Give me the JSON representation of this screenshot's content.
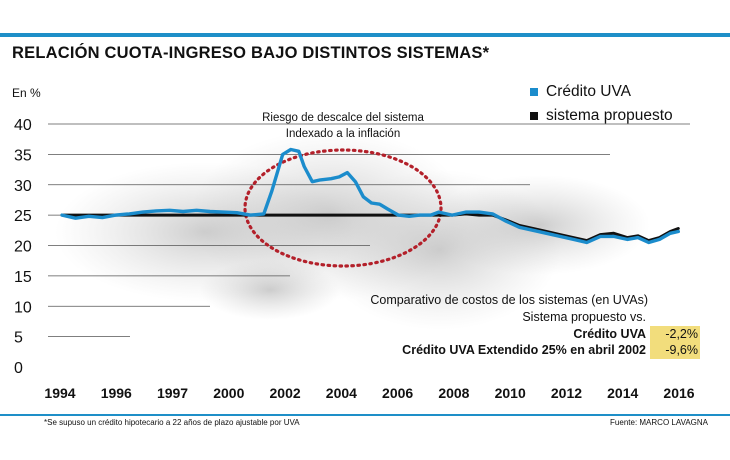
{
  "header": {
    "title": "RELACIÓN CUOTA-INGRESO BAJO DISTINTOS SISTEMAS*"
  },
  "chart_data": {
    "type": "line",
    "title": "RELACIÓN CUOTA-INGRESO BAJO DISTINTOS SISTEMAS*",
    "ylabel": "En %",
    "xlabel": "",
    "ylim": [
      0,
      40
    ],
    "xlim": [
      1994,
      2017
    ],
    "yticks": [
      "0",
      "5",
      "10",
      "15",
      "20",
      "25",
      "30",
      "35",
      "40"
    ],
    "xticks": [
      "1994",
      "1996",
      "1997",
      "2000",
      "2002",
      "2004",
      "2006",
      "2008",
      "2010",
      "2012",
      "2014",
      "2016"
    ],
    "legend_position": "top-right",
    "series": [
      {
        "name": "Crédito UVA",
        "color": "#1b8ccc",
        "x": [
          1994,
          1994.5,
          1995,
          1995.5,
          1996,
          1996.5,
          1997,
          1997.5,
          1998,
          1998.5,
          1999,
          1999.5,
          2000,
          2000.5,
          2001,
          2001.5,
          2001.8,
          2002,
          2002.2,
          2002.5,
          2002.8,
          2003,
          2003.3,
          2003.6,
          2004,
          2004.3,
          2004.6,
          2004.9,
          2005.2,
          2005.5,
          2005.8,
          2006.1,
          2006.5,
          2006.9,
          2007.3,
          2007.7,
          2008,
          2008.5,
          2009,
          2009.5,
          2010,
          2010.5,
          2011,
          2011.5,
          2012,
          2012.5,
          2013,
          2013.5,
          2014,
          2014.5,
          2015,
          2015.4,
          2015.8,
          2016.2,
          2016.6,
          2016.9
        ],
        "values": [
          25.0,
          24.5,
          24.8,
          24.6,
          25.0,
          25.2,
          25.5,
          25.7,
          25.8,
          25.6,
          25.8,
          25.6,
          25.5,
          25.4,
          25.0,
          25.2,
          29.0,
          32.0,
          35.0,
          35.8,
          35.5,
          33.0,
          30.5,
          30.8,
          31.0,
          31.3,
          32.0,
          30.5,
          28.0,
          27.0,
          26.8,
          26.0,
          25.0,
          24.8,
          25.0,
          25.0,
          25.5,
          25.0,
          25.5,
          25.5,
          25.2,
          24.0,
          23.0,
          22.5,
          22.0,
          21.5,
          21.0,
          20.5,
          21.5,
          21.5,
          21.0,
          21.3,
          20.5,
          21.0,
          22.0,
          22.3
        ]
      },
      {
        "name": "sistema propuesto",
        "color": "#111111",
        "x": [
          1994,
          1995,
          1996,
          1997,
          1998,
          1999,
          2000,
          2001,
          2002,
          2003,
          2004,
          2005,
          2006,
          2007,
          2007.5,
          2008,
          2008.5,
          2009,
          2009.5,
          2010,
          2010.5,
          2011,
          2011.5,
          2012,
          2012.5,
          2013,
          2013.5,
          2014,
          2014.5,
          2015,
          2015.4,
          2015.8,
          2016.2,
          2016.6,
          2016.9
        ],
        "values": [
          25.0,
          25.0,
          25.0,
          25.0,
          25.0,
          25.0,
          25.0,
          25.0,
          25.0,
          25.0,
          25.0,
          25.0,
          25.0,
          25.0,
          25.0,
          25.0,
          25.0,
          25.2,
          25.0,
          25.0,
          24.2,
          23.3,
          22.8,
          22.3,
          21.8,
          21.3,
          20.8,
          21.8,
          22.0,
          21.3,
          21.6,
          20.8,
          21.3,
          22.3,
          22.8
        ]
      }
    ],
    "annotations": [
      "Riesgo de descalce del sistema",
      "Indexado a la inflación"
    ]
  },
  "comparison": {
    "heading": "Comparativo de costos de los sistemas (en UVAs)",
    "subheading": "Sistema propuesto vs.",
    "rows": [
      {
        "label": "Crédito UVA",
        "value": "-2,2%"
      },
      {
        "label": "Crédito UVA Extendido 25% en abril 2002",
        "value": "-9,6%"
      }
    ]
  },
  "footer": {
    "footnote": "*Se supuso un crédito hipotecario a 22 años de plazo ajustable por UVA",
    "source": "Fuente: MARCO LAVAGNA"
  },
  "colors": {
    "accent_rule": "#1e8fc8",
    "highlight": "#f2dd7c",
    "ellipse": "#b3202a"
  }
}
